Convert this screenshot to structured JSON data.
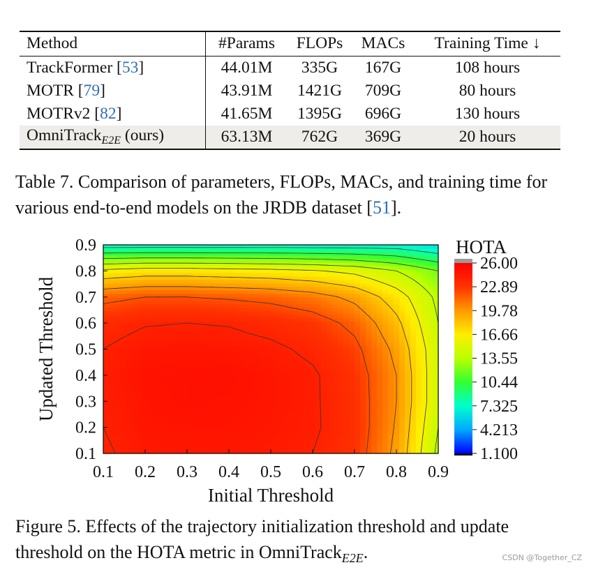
{
  "table": {
    "headers": [
      "Method",
      "#Params",
      "FLOPs",
      "MACs",
      "Training Time ↓"
    ],
    "rows": [
      {
        "method": "TrackFormer",
        "cite": "53",
        "params": "44.01M",
        "flops": "335G",
        "macs": "167G",
        "time": "108 hours"
      },
      {
        "method": "MOTR",
        "cite": "79",
        "params": "43.91M",
        "flops": "1421G",
        "macs": "709G",
        "time": "80 hours"
      },
      {
        "method": "MOTRv2",
        "cite": "82",
        "params": "41.65M",
        "flops": "1395G",
        "macs": "696G",
        "time": "130 hours"
      },
      {
        "method": "OmniTrack",
        "method_sub": "E2E",
        "method_suffix": " (ours)",
        "params": "63.13M",
        "flops": "762G",
        "macs": "369G",
        "time": "20 hours"
      }
    ]
  },
  "table_caption": {
    "text": "Table 7. Comparison of parameters, FLOPs, MACs, and training time for various end-to-end models on the JRDB dataset [",
    "cite": "51",
    "end": "]."
  },
  "figure_caption": {
    "text": "Figure 5. Effects of the trajectory initialization threshold and update threshold on the HOTA metric in OmniTrack",
    "sub": "E2E",
    "end": "."
  },
  "watermark": "CSDN @Together_CZ",
  "chart_data": {
    "type": "heatmap",
    "title": "",
    "xlabel": "Initial Threshold",
    "ylabel": "Updated Threshold",
    "x_ticks": [
      "0.1",
      "0.2",
      "0.3",
      "0.4",
      "0.5",
      "0.6",
      "0.7",
      "0.8",
      "0.9"
    ],
    "y_ticks": [
      "0.1",
      "0.2",
      "0.3",
      "0.4",
      "0.5",
      "0.6",
      "0.7",
      "0.8",
      "0.9"
    ],
    "xlim": [
      0.1,
      0.9
    ],
    "ylim": [
      0.1,
      0.9
    ],
    "colorbar": {
      "label": "HOTA",
      "ticks": [
        "26.00",
        "22.89",
        "19.78",
        "16.66",
        "13.55",
        "10.44",
        "7.325",
        "4.213",
        "1.100"
      ],
      "range": [
        1.1,
        26.0
      ],
      "colormap": [
        "#0000ff",
        "#00aaff",
        "#00ffcc",
        "#33ff33",
        "#bbff00",
        "#ffee00",
        "#ff9900",
        "#ff3300",
        "#ff0000"
      ]
    },
    "x": [
      0.1,
      0.2,
      0.3,
      0.4,
      0.5,
      0.6,
      0.7,
      0.8,
      0.9
    ],
    "y": [
      0.1,
      0.2,
      0.3,
      0.4,
      0.5,
      0.6,
      0.7,
      0.8,
      0.9
    ],
    "z": [
      [
        23.8,
        24.5,
        24.6,
        24.6,
        24.4,
        24.0,
        23.0,
        19.5,
        13.5
      ],
      [
        24.0,
        24.7,
        24.8,
        24.8,
        24.6,
        24.2,
        23.2,
        19.8,
        14.0
      ],
      [
        24.1,
        24.8,
        25.0,
        24.9,
        24.7,
        24.2,
        23.1,
        20.0,
        14.5
      ],
      [
        24.2,
        24.9,
        25.0,
        25.0,
        24.7,
        24.2,
        23.0,
        20.0,
        14.5
      ],
      [
        24.0,
        24.6,
        24.7,
        24.6,
        24.3,
        23.7,
        22.5,
        19.5,
        14.5
      ],
      [
        23.4,
        23.9,
        24.0,
        23.9,
        23.5,
        22.9,
        21.5,
        18.5,
        14.0
      ],
      [
        21.5,
        22.0,
        22.0,
        21.8,
        21.5,
        20.8,
        19.5,
        17.0,
        13.5
      ],
      [
        16.5,
        17.0,
        17.0,
        16.8,
        16.6,
        16.2,
        15.5,
        14.0,
        12.0
      ],
      [
        7.0,
        7.0,
        7.0,
        7.0,
        7.0,
        7.0,
        7.0,
        7.0,
        6.0
      ]
    ]
  }
}
